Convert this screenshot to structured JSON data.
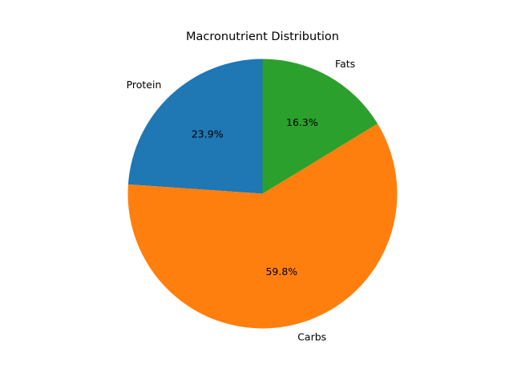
{
  "chart_data": {
    "type": "pie",
    "title": "Macronutrient Distribution",
    "categories": [
      "Protein",
      "Carbs",
      "Fats"
    ],
    "values": [
      23.9,
      59.8,
      16.3
    ],
    "percent_labels": [
      "23.9%",
      "59.8%",
      "16.3%"
    ],
    "colors": [
      "#1f77b4",
      "#ff7f0e",
      "#2ca02c"
    ],
    "start_angle_deg": 90,
    "direction": "counterclockwise",
    "legend": "none"
  }
}
